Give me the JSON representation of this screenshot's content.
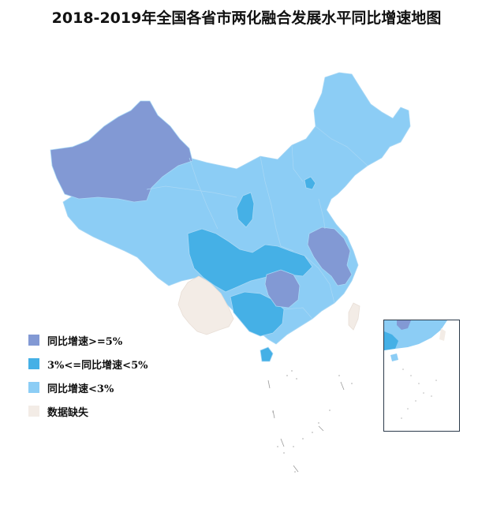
{
  "title": "2018-2019年全国各省市两化融合发展水平同比增速地图",
  "legend": [
    {
      "label": "同比增速>=5%",
      "color": "#8299d4"
    },
    {
      "label": "3%<=同比增速<5%",
      "color": "#45b0e6"
    },
    {
      "label": "同比增速<3%",
      "color": "#8ccdf5"
    },
    {
      "label": "数据缺失",
      "color": "#f3ece6"
    }
  ],
  "colors": {
    "high": "#8299d4",
    "mid": "#45b0e6",
    "low": "#8ccdf5",
    "missing": "#f3ece6",
    "border": "#7fb0d8"
  }
}
